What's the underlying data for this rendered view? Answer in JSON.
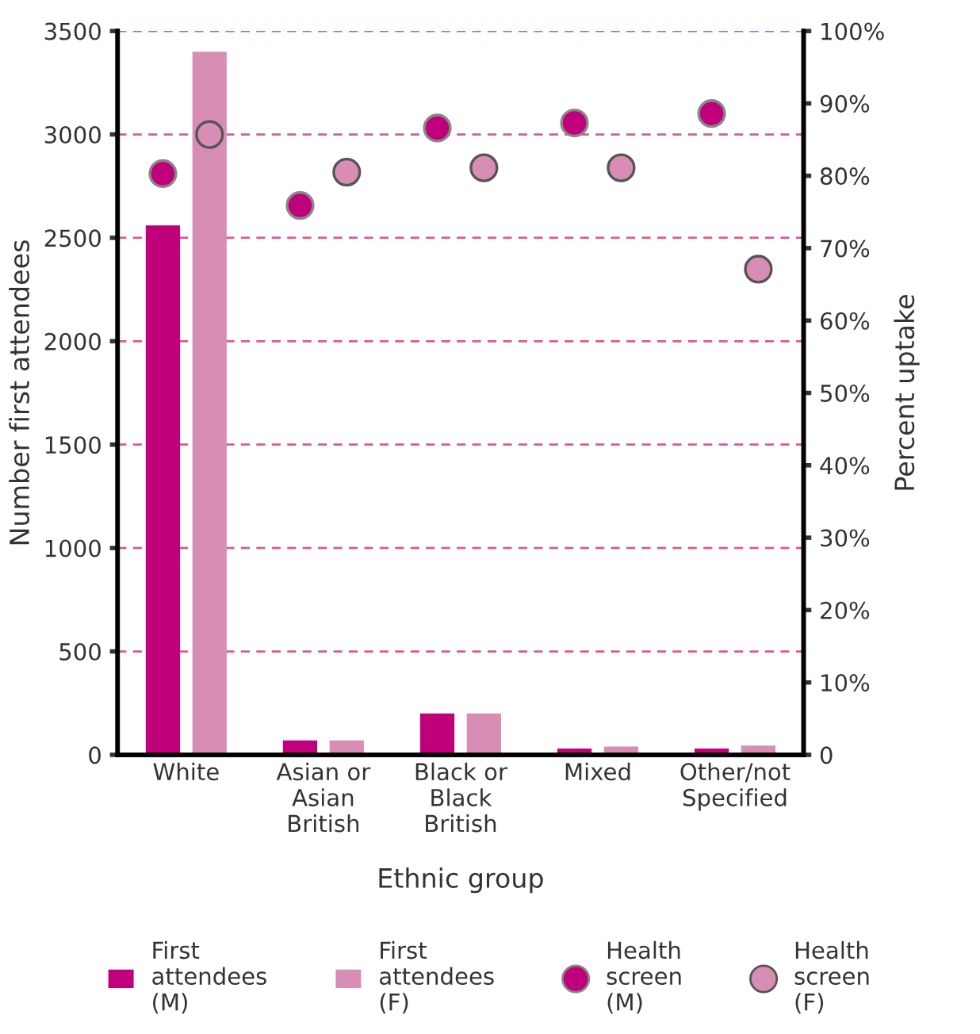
{
  "chart_data": {
    "type": "bar",
    "xlabel": "Ethnic group",
    "ylabel": "Number first attendees",
    "y2label": "Percent uptake",
    "categories": [
      "White",
      "Asian or\nAsian\nBritish",
      "Black or\nBlack\nBritish",
      "Mixed",
      "Other/not\nSpecified"
    ],
    "series": [
      {
        "name": "First\nattendees\n(M)",
        "color": "#c0007a",
        "values": [
          2560,
          70,
          200,
          30,
          30
        ]
      },
      {
        "name": "First\nattendees\n(F)",
        "color": "#d88db4",
        "values": [
          3400,
          70,
          200,
          40,
          45
        ]
      },
      {
        "name": "Health\nscreen\n(M)",
        "type": "scatter",
        "axis": "y2",
        "color": "#c0007a",
        "x": [
          "White",
          "Asian or\nAsian\nBritish",
          "Black or\nBlack\nBritish",
          "Mixed",
          "Other/not\nSpecified"
        ],
        "values": [
          80.3,
          75.9,
          86.6,
          87.3,
          88.6
        ]
      },
      {
        "name": "Health\nscreen\n(F)",
        "type": "scatter",
        "axis": "y2",
        "color": "#d88db4",
        "x": [
          "White",
          "Asian or\nAsian\nBritish",
          "Black or\nBlack\nBritish",
          "Mixed",
          "Other/not\nSpecified"
        ],
        "values": [
          85.7,
          80.5,
          81.1,
          81.1,
          67.1
        ]
      }
    ],
    "ylim": [
      0,
      3500
    ],
    "yticks": [
      0,
      500,
      1000,
      1500,
      2000,
      2500,
      3000,
      3500
    ],
    "y2lim": [
      0,
      100
    ],
    "y2ticks": [
      {
        "value": 0,
        "label": "0"
      },
      {
        "value": 10,
        "label": "10%"
      },
      {
        "value": 20,
        "label": "20%"
      },
      {
        "value": 30,
        "label": "30%"
      },
      {
        "value": 40,
        "label": "40%"
      },
      {
        "value": 50,
        "label": "50%"
      },
      {
        "value": 60,
        "label": "60%"
      },
      {
        "value": 70,
        "label": "70%"
      },
      {
        "value": 80,
        "label": "80%"
      },
      {
        "value": 90,
        "label": "90%"
      },
      {
        "value": 100,
        "label": "100%"
      }
    ],
    "grid": "y",
    "legend": "bottom",
    "marker": "circle"
  }
}
